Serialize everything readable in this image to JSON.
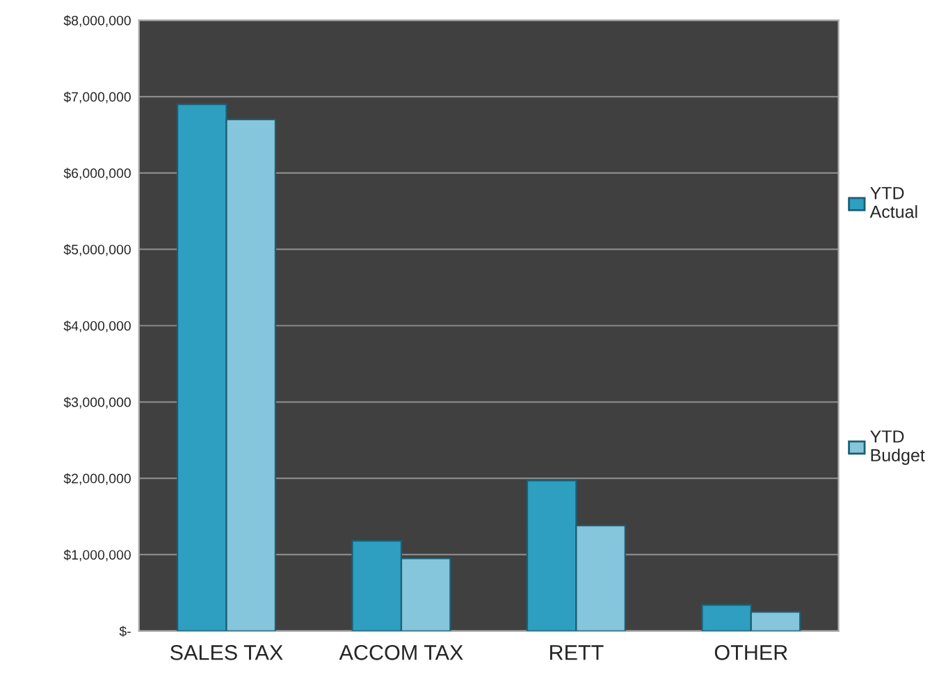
{
  "chart_data": {
    "type": "bar",
    "categories": [
      "SALES TAX",
      "ACCOM TAX",
      "RETT",
      "OTHER"
    ],
    "series": [
      {
        "name": "YTD Actual",
        "color": "#2e9fc0",
        "values": [
          6900000,
          1180000,
          1970000,
          340000
        ]
      },
      {
        "name": "YTD Budget",
        "color": "#86c6dc",
        "values": [
          6700000,
          950000,
          1380000,
          250000
        ]
      }
    ],
    "ylim": [
      0,
      8000000
    ],
    "yticks": [
      {
        "value": 0,
        "label": "$-"
      },
      {
        "value": 1000000,
        "label": "$1,000,000"
      },
      {
        "value": 2000000,
        "label": "$2,000,000"
      },
      {
        "value": 3000000,
        "label": "$3,000,000"
      },
      {
        "value": 4000000,
        "label": "$4,000,000"
      },
      {
        "value": 5000000,
        "label": "$5,000,000"
      },
      {
        "value": 6000000,
        "label": "$6,000,000"
      },
      {
        "value": 7000000,
        "label": "$7,000,000"
      },
      {
        "value": 8000000,
        "label": "$8,000,000"
      }
    ],
    "grid": "y",
    "legend": "right"
  }
}
